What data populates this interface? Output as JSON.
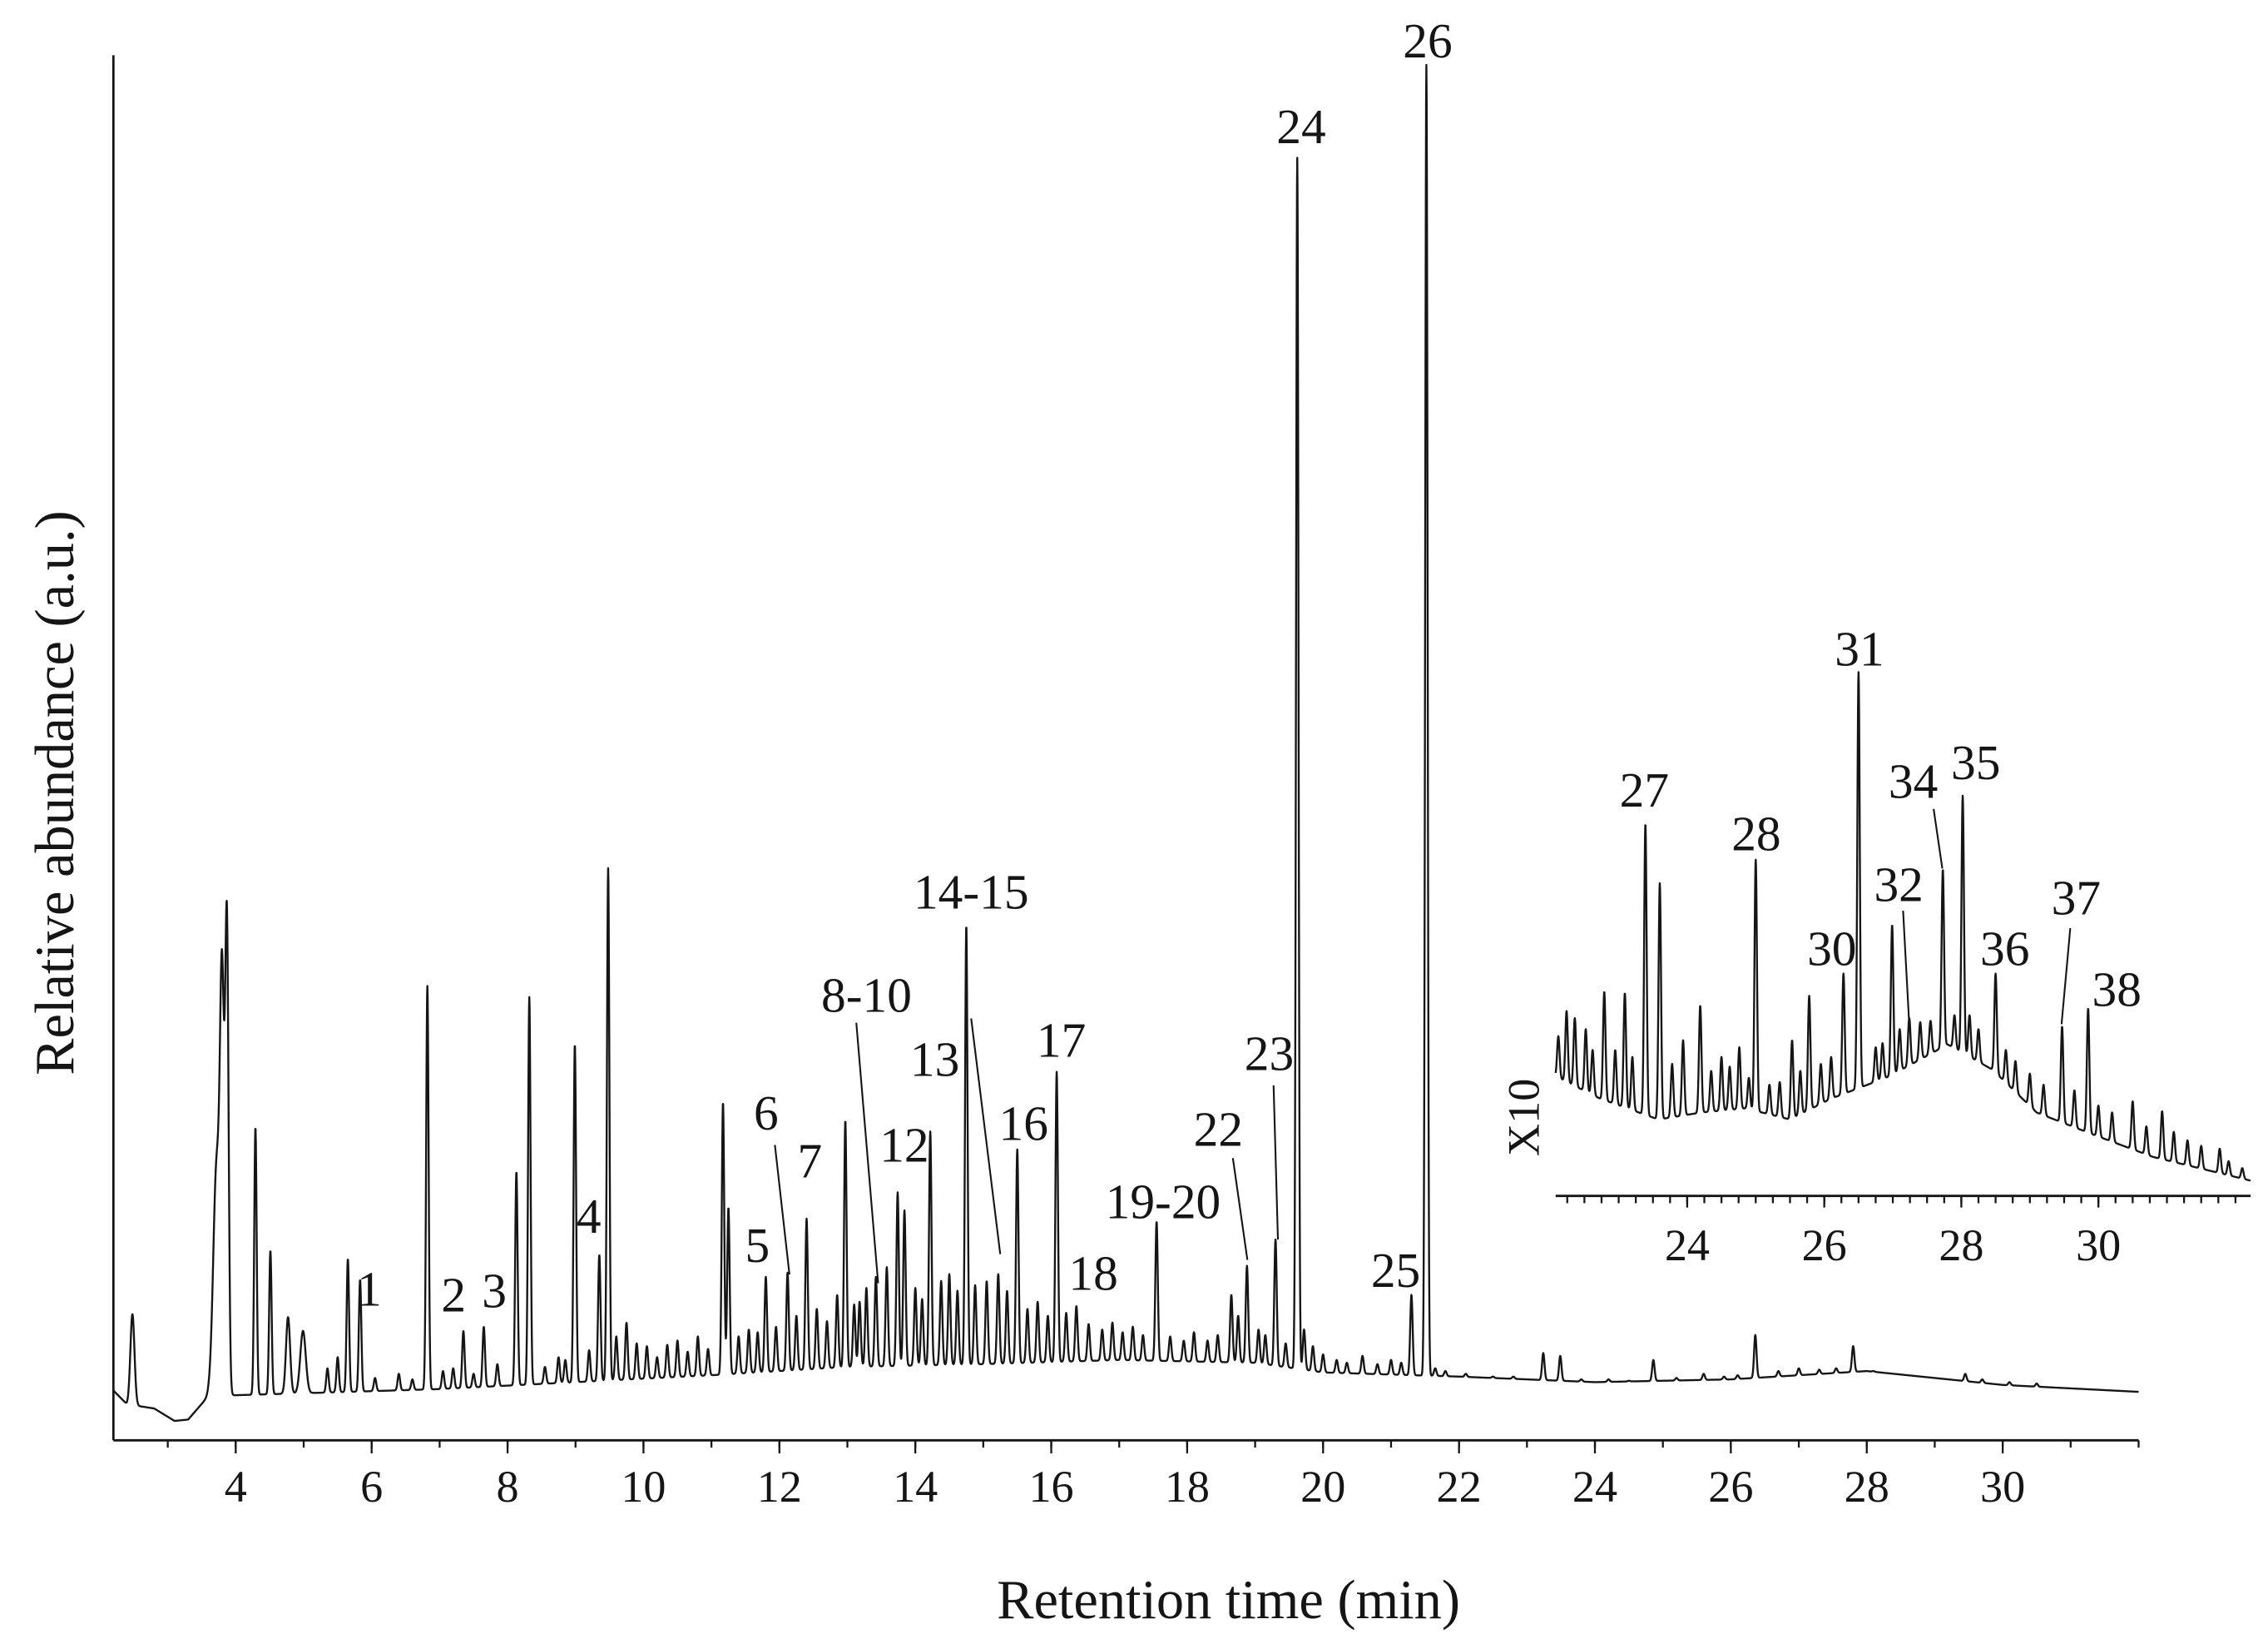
{
  "chart_data": [
    {
      "type": "line",
      "xlabel": "Retention time (min)",
      "ylabel": "Relative abundance (a.u.)",
      "xlim": [
        2.2,
        32
      ],
      "ylim": [
        0,
        100
      ],
      "x_ticks": [
        "4",
        "6",
        "8",
        "10",
        "12",
        "14",
        "16",
        "18",
        "20",
        "22",
        "24",
        "26",
        "28",
        "30"
      ],
      "grid": false,
      "legend": "none",
      "baseline": [
        [
          2.2,
          3.6
        ],
        [
          2.4,
          2.6
        ],
        [
          2.8,
          2.3
        ],
        [
          3.1,
          1.4
        ],
        [
          3.3,
          1.5
        ],
        [
          3.6,
          3.2
        ],
        [
          5,
          3.4
        ],
        [
          7,
          3.7
        ],
        [
          9,
          4.2
        ],
        [
          11,
          4.7
        ],
        [
          13,
          5.3
        ],
        [
          15,
          5.5
        ],
        [
          17,
          5.8
        ],
        [
          19,
          5.6
        ],
        [
          20,
          4.9
        ],
        [
          22,
          4.6
        ],
        [
          24,
          4.2
        ],
        [
          26,
          4.4
        ],
        [
          28,
          5.0
        ],
        [
          30,
          4.0
        ],
        [
          32,
          3.5
        ]
      ],
      "labeled_peaks": [
        {
          "label": "1",
          "rt": 5.83,
          "abundance": 11.6
        },
        {
          "label": "2",
          "rt": 7.35,
          "abundance": 7.9
        },
        {
          "label": "3",
          "rt": 7.65,
          "abundance": 8.2
        },
        {
          "label": "4",
          "rt": 9.35,
          "abundance": 13.4
        },
        {
          "label": "5",
          "rt": 11.8,
          "abundance": 11.8
        },
        {
          "label": "6",
          "rt": 12.12,
          "abundance": 12.1
        },
        {
          "label": "7",
          "rt": 12.4,
          "abundance": 16.0
        },
        {
          "label": "8-10",
          "rt": 13.42,
          "abundance": 11.8
        },
        {
          "label": "12",
          "rt": 13.84,
          "abundance": 16.6
        },
        {
          "label": "13",
          "rt": 14.22,
          "abundance": 22.3
        },
        {
          "label": "14-15",
          "rt": 14.75,
          "abundance": 37.2
        },
        {
          "label": "16",
          "rt": 15.5,
          "abundance": 21.0
        },
        {
          "label": "17",
          "rt": 16.08,
          "abundance": 26.6
        },
        {
          "label": "18",
          "rt": 16.37,
          "abundance": 9.7
        },
        {
          "label": "19-20",
          "rt": 17.55,
          "abundance": 15.8
        },
        {
          "label": "22",
          "rt": 18.88,
          "abundance": 12.6
        },
        {
          "label": "23",
          "rt": 19.3,
          "abundance": 14.5
        },
        {
          "label": "24",
          "rt": 19.62,
          "abundance": 92.6
        },
        {
          "label": "25",
          "rt": 21.3,
          "abundance": 10.5
        },
        {
          "label": "26",
          "rt": 21.52,
          "abundance": 99.3
        }
      ],
      "peaks": [
        [
          2.48,
          9.1,
          0.03
        ],
        [
          3.72,
          20.0,
          0.05
        ],
        [
          3.8,
          30.0,
          0.03
        ],
        [
          3.87,
          36.8,
          0.025
        ],
        [
          4.29,
          22.6
        ],
        [
          4.51,
          13.7
        ],
        [
          4.77,
          8.9,
          0.03
        ],
        [
          4.99,
          7.9,
          0.04
        ],
        [
          5.35,
          5.2
        ],
        [
          5.5,
          6.0
        ],
        [
          5.65,
          13.1
        ],
        [
          6.05,
          4.5
        ],
        [
          6.4,
          4.8
        ],
        [
          6.6,
          4.4
        ],
        [
          6.82,
          32.8
        ],
        [
          7.05,
          5.0
        ],
        [
          7.2,
          5.2
        ],
        [
          7.5,
          4.8
        ],
        [
          7.85,
          5.5
        ],
        [
          8.13,
          19.4
        ],
        [
          8.32,
          32.0
        ],
        [
          8.55,
          5.3
        ],
        [
          8.75,
          6.0
        ],
        [
          8.85,
          5.8
        ],
        [
          8.99,
          28.6
        ],
        [
          9.2,
          6.5
        ],
        [
          9.48,
          41.3
        ],
        [
          9.6,
          7.5
        ],
        [
          9.75,
          8.5
        ],
        [
          9.9,
          7.0
        ],
        [
          10.05,
          6.8
        ],
        [
          10.2,
          6.0
        ],
        [
          10.35,
          6.9
        ],
        [
          10.5,
          7.2
        ],
        [
          10.65,
          6.4
        ],
        [
          10.8,
          7.5
        ],
        [
          10.95,
          6.6
        ],
        [
          11.17,
          24.4
        ],
        [
          11.25,
          16.8
        ],
        [
          11.4,
          7.5
        ],
        [
          11.55,
          8.0
        ],
        [
          11.68,
          7.8
        ],
        [
          11.95,
          8.2
        ],
        [
          12.25,
          9.0
        ],
        [
          12.55,
          9.5
        ],
        [
          12.7,
          8.6
        ],
        [
          12.85,
          10.5
        ],
        [
          12.97,
          23.1
        ],
        [
          13.1,
          9.8
        ],
        [
          13.18,
          10.0
        ],
        [
          13.28,
          11.0
        ],
        [
          13.58,
          12.5
        ],
        [
          13.74,
          17.9
        ],
        [
          14.0,
          11.0
        ],
        [
          14.1,
          10.2
        ],
        [
          14.38,
          11.5
        ],
        [
          14.5,
          12.0
        ],
        [
          14.62,
          10.8
        ],
        [
          14.88,
          11.2
        ],
        [
          15.05,
          11.5
        ],
        [
          15.22,
          12.0
        ],
        [
          15.35,
          10.8
        ],
        [
          15.65,
          9.5
        ],
        [
          15.8,
          10.0
        ],
        [
          15.95,
          9.0
        ],
        [
          16.22,
          9.2
        ],
        [
          16.55,
          8.4
        ],
        [
          16.75,
          8.0
        ],
        [
          16.9,
          8.5
        ],
        [
          17.05,
          7.8
        ],
        [
          17.2,
          8.2
        ],
        [
          17.35,
          7.6
        ],
        [
          17.75,
          7.5
        ],
        [
          17.95,
          7.2
        ],
        [
          18.1,
          7.8
        ],
        [
          18.3,
          7.2
        ],
        [
          18.45,
          7.6
        ],
        [
          18.65,
          10.5
        ],
        [
          18.75,
          9.0
        ],
        [
          19.05,
          8.0
        ],
        [
          19.15,
          7.6
        ],
        [
          19.45,
          7.0
        ],
        [
          19.72,
          8.0
        ],
        [
          19.85,
          6.8
        ],
        [
          20.0,
          6.2
        ],
        [
          20.2,
          5.8
        ],
        [
          20.35,
          5.6
        ],
        [
          20.58,
          6.1
        ],
        [
          20.8,
          5.5
        ],
        [
          21.0,
          5.8
        ],
        [
          21.15,
          5.6
        ],
        [
          21.65,
          5.2
        ],
        [
          21.8,
          5.0
        ],
        [
          22.1,
          4.8
        ],
        [
          22.5,
          4.6
        ],
        [
          22.8,
          4.6
        ],
        [
          23.0,
          4.4
        ],
        [
          23.24,
          6.3
        ],
        [
          23.49,
          6.1
        ],
        [
          23.8,
          4.4
        ],
        [
          24.2,
          4.4
        ],
        [
          24.5,
          4.3
        ],
        [
          24.86,
          5.8
        ],
        [
          25.2,
          4.5
        ],
        [
          25.6,
          4.8
        ],
        [
          25.9,
          4.6
        ],
        [
          26.1,
          4.7
        ],
        [
          26.36,
          7.6
        ],
        [
          26.7,
          5.0
        ],
        [
          27.0,
          5.2
        ],
        [
          27.3,
          5.1
        ],
        [
          27.55,
          5.2
        ],
        [
          27.8,
          6.8
        ],
        [
          28.1,
          5.0
        ],
        [
          28.4,
          4.8
        ],
        [
          28.8,
          4.6
        ],
        [
          29.2,
          4.4
        ],
        [
          29.45,
          4.8
        ],
        [
          29.7,
          4.4
        ],
        [
          30.1,
          4.2
        ],
        [
          30.5,
          4.1
        ]
      ]
    },
    {
      "type": "line",
      "ylabel": "X10",
      "xlim": [
        22.08,
        32.22
      ],
      "ylim": [
        0,
        40
      ],
      "x_ticks": [
        "24",
        "26",
        "28",
        "30"
      ],
      "grid": false,
      "legend": "none",
      "baseline": [
        [
          22.08,
          8.6
        ],
        [
          22.73,
          7.0
        ],
        [
          23.58,
          5.5
        ],
        [
          24.2,
          6.0
        ],
        [
          24.85,
          6.3
        ],
        [
          25.5,
          5.5
        ],
        [
          26.1,
          7.0
        ],
        [
          26.95,
          8.6
        ],
        [
          27.8,
          10.9
        ],
        [
          28.45,
          9.1
        ],
        [
          29.1,
          6.0
        ],
        [
          29.93,
          4.4
        ],
        [
          30.8,
          2.8
        ],
        [
          32.22,
          1.1
        ]
      ],
      "labeled_peaks": [
        {
          "label": "27",
          "rt": 23.39,
          "abundance": 26.8
        },
        {
          "label": "28",
          "rt": 25.0,
          "abundance": 24.2
        },
        {
          "label": "30",
          "rt": 26.28,
          "abundance": 16.0
        },
        {
          "label": "31",
          "rt": 26.5,
          "abundance": 37.7
        },
        {
          "label": "32",
          "rt": 27.24,
          "abundance": 12.8
        },
        {
          "label": "34",
          "rt": 27.73,
          "abundance": 23.5
        },
        {
          "label": "35",
          "rt": 28.02,
          "abundance": 28.8
        },
        {
          "label": "36",
          "rt": 28.5,
          "abundance": 16.0
        },
        {
          "label": "37",
          "rt": 29.47,
          "abundance": 12.2
        },
        {
          "label": "38",
          "rt": 29.85,
          "abundance": 13.5
        }
      ],
      "peaks": [
        [
          22.12,
          11.5
        ],
        [
          22.24,
          13.3
        ],
        [
          22.36,
          12.8
        ],
        [
          22.52,
          12.0
        ],
        [
          22.62,
          10.5
        ],
        [
          22.79,
          14.7
        ],
        [
          22.95,
          10.5
        ],
        [
          23.09,
          14.6
        ],
        [
          23.2,
          10.0
        ],
        [
          23.6,
          22.5
        ],
        [
          23.78,
          9.5
        ],
        [
          23.94,
          11.2
        ],
        [
          24.19,
          13.7
        ],
        [
          24.35,
          9.0
        ],
        [
          24.5,
          10.0
        ],
        [
          24.62,
          9.3
        ],
        [
          24.76,
          10.7
        ],
        [
          24.9,
          8.5
        ],
        [
          25.2,
          8.0
        ],
        [
          25.35,
          8.2
        ],
        [
          25.53,
          11.2
        ],
        [
          25.65,
          9.0
        ],
        [
          25.78,
          14.4
        ],
        [
          25.95,
          9.5
        ],
        [
          26.1,
          10.0
        ],
        [
          26.75,
          10.7
        ],
        [
          26.85,
          11.0
        ],
        [
          26.99,
          19.5
        ],
        [
          27.1,
          12.0
        ],
        [
          27.4,
          12.5
        ],
        [
          27.55,
          12.6
        ],
        [
          27.9,
          13.0
        ],
        [
          28.12,
          13.0
        ],
        [
          28.25,
          12.0
        ],
        [
          28.65,
          10.5
        ],
        [
          28.79,
          9.7
        ],
        [
          29.0,
          8.8
        ],
        [
          29.2,
          8.0
        ],
        [
          29.65,
          7.6
        ],
        [
          30.0,
          6.5
        ],
        [
          30.2,
          6.0
        ],
        [
          30.5,
          6.8
        ],
        [
          30.7,
          5.0
        ],
        [
          30.93,
          6.1
        ],
        [
          31.1,
          4.6
        ],
        [
          31.3,
          4.0
        ],
        [
          31.5,
          3.6
        ],
        [
          31.77,
          3.4
        ],
        [
          31.9,
          2.5
        ],
        [
          32.1,
          2.0
        ]
      ]
    }
  ]
}
